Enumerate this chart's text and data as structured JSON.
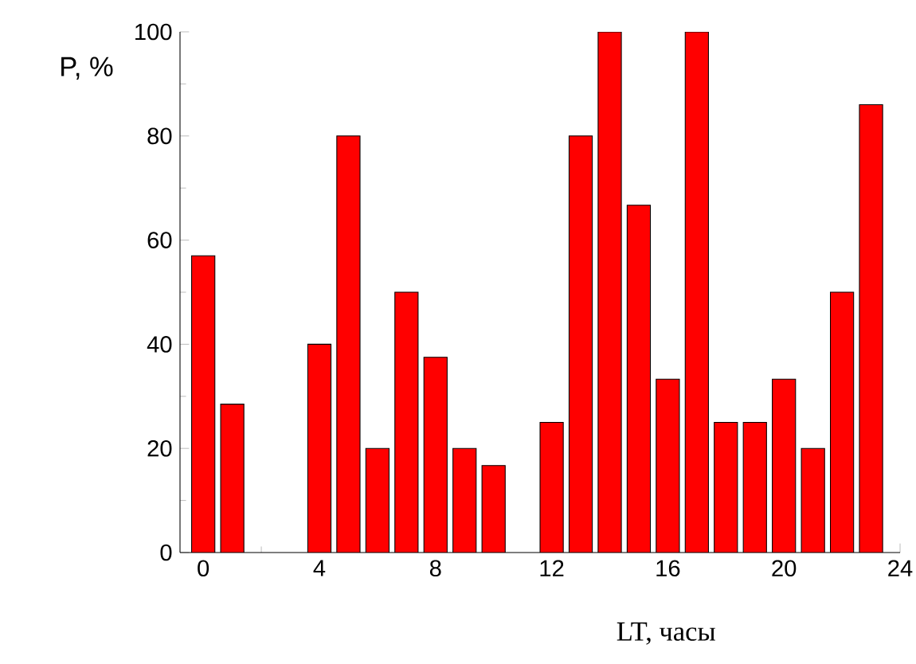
{
  "chart_data": {
    "type": "bar",
    "xlabel": "LT, часы",
    "ylabel": "P, %",
    "x": [
      0,
      1,
      2,
      3,
      4,
      5,
      6,
      7,
      8,
      9,
      10,
      11,
      12,
      13,
      14,
      15,
      16,
      17,
      18,
      19,
      20,
      21,
      22,
      23
    ],
    "values": [
      57,
      28.5,
      null,
      null,
      40,
      80,
      20,
      50,
      37.5,
      20,
      16.7,
      null,
      25,
      80,
      100,
      66.7,
      33.3,
      100,
      25,
      25,
      33.3,
      20,
      50,
      86
    ],
    "color": "#ff0000",
    "xlim": [
      -0.8,
      24
    ],
    "ylim": [
      0,
      100
    ],
    "xticks": [
      0,
      4,
      8,
      12,
      16,
      20,
      24
    ],
    "yticks": [
      0,
      20,
      40,
      60,
      80,
      100
    ]
  }
}
